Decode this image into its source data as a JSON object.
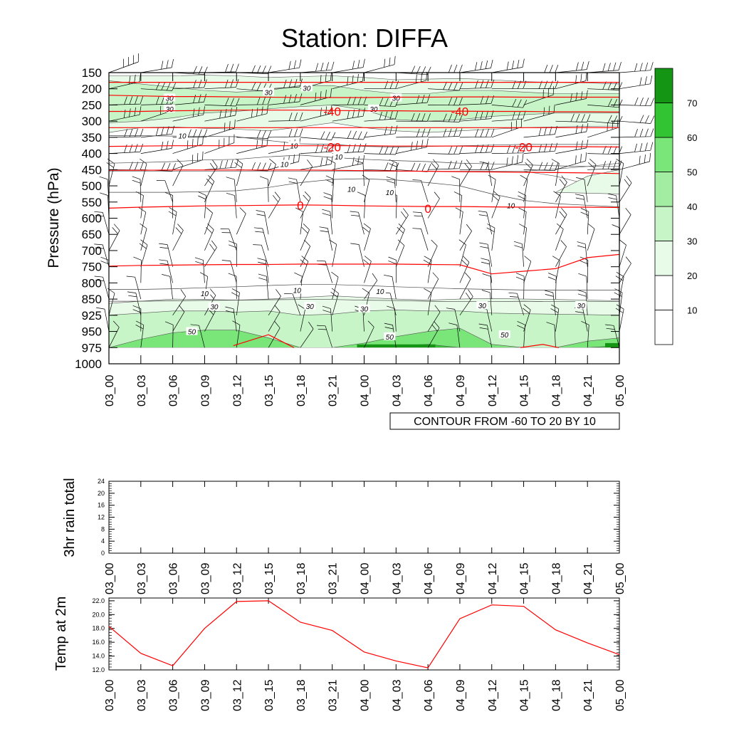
{
  "chart_data": [
    {
      "type": "contour",
      "title": "Station: DIFFA",
      "ylabel": "Pressure (hPa)",
      "info_label": "CONTOUR FROM -60 TO 20 BY 10",
      "time_labels": [
        "03_00",
        "03_03",
        "03_06",
        "03_09",
        "03_12",
        "03_15",
        "03_18",
        "03_21",
        "04_00",
        "04_03",
        "04_06",
        "04_09",
        "04_12",
        "04_15",
        "04_18",
        "04_21",
        "05_00"
      ],
      "pressure_levels": [
        150,
        200,
        250,
        300,
        350,
        400,
        450,
        500,
        550,
        600,
        650,
        700,
        750,
        800,
        850,
        925,
        950,
        975,
        1000
      ],
      "wind_speed_colorbar": {
        "bounds": [
          10,
          20,
          30,
          40,
          50,
          60,
          70
        ],
        "colors": [
          "#ffffff",
          "#ffffff",
          "#e8fbe8",
          "#c8f5c8",
          "#a3eda3",
          "#7ae67a",
          "#33c433",
          "#149614"
        ],
        "tick_labels": [
          "10",
          "20",
          "30",
          "40",
          "50",
          "60",
          "70"
        ]
      },
      "speed_contour_labels": [
        "30",
        "30",
        "30",
        "30",
        "30",
        "30",
        "10",
        "10",
        "10",
        "10",
        "10",
        "10",
        "10",
        "10",
        "10",
        "10",
        "30",
        "30",
        "30",
        "30",
        "30",
        "50",
        "50",
        "50"
      ],
      "temperature_isotherms": [
        {
          "value": -50,
          "label": "",
          "pressure": [
            180,
            180,
            180,
            180,
            180,
            180,
            180,
            180,
            180,
            180,
            180,
            180,
            180,
            180,
            180,
            180,
            180
          ]
        },
        {
          "value": -50,
          "label": "",
          "pressure": [
            220,
            222,
            224,
            224,
            225,
            226,
            227,
            227,
            227,
            226,
            226,
            225,
            225,
            226,
            226,
            226,
            226
          ]
        },
        {
          "value": -40,
          "label": "-40",
          "pressure": [
            270,
            270,
            268,
            267,
            266,
            266,
            266,
            267,
            268,
            268,
            269,
            269,
            270,
            270,
            271,
            271,
            272
          ]
        },
        {
          "value": -30,
          "label": "",
          "pressure": [
            320,
            320,
            320,
            320,
            320,
            320,
            320,
            320,
            320,
            320,
            320,
            320,
            320,
            320,
            320,
            320,
            320
          ]
        },
        {
          "value": -20,
          "label": "-20",
          "pressure": [
            378,
            377,
            376,
            376,
            376,
            376,
            376,
            376,
            376,
            377,
            377,
            377,
            378,
            378,
            379,
            379,
            380
          ]
        },
        {
          "value": -10,
          "label": "",
          "pressure": [
            452,
            452,
            451,
            451,
            451,
            451,
            451,
            452,
            453,
            454,
            455,
            456,
            457,
            458,
            459,
            460,
            462
          ]
        },
        {
          "value": 0,
          "label": "0",
          "pressure": [
            569,
            566,
            564,
            562,
            561,
            560,
            559,
            560,
            562,
            563,
            564,
            564,
            565,
            566,
            566,
            566,
            567
          ]
        },
        {
          "value": 10,
          "label": "",
          "pressure": [
            748,
            746,
            745,
            744,
            743,
            743,
            742,
            742,
            742,
            742,
            743,
            744,
            772,
            764,
            756,
            722,
            712
          ]
        }
      ],
      "isotherm_labels": [
        {
          "text": "-40",
          "time": "03_21",
          "pressure": 270
        },
        {
          "text": "-40",
          "time": "04_09",
          "pressure": 270
        },
        {
          "text": "-20",
          "time": "03_21",
          "pressure": 380
        },
        {
          "text": "-20",
          "time": "04_15",
          "pressure": 380
        },
        {
          "text": "0",
          "time": "03_18",
          "pressure": 560
        },
        {
          "text": "0",
          "time": "04_06",
          "pressure": 570
        }
      ]
    },
    {
      "type": "bar",
      "ylabel": "3hr rain total",
      "x": [
        "03_00",
        "03_03",
        "03_06",
        "03_09",
        "03_12",
        "03_15",
        "03_18",
        "03_21",
        "04_00",
        "04_03",
        "04_06",
        "04_09",
        "04_12",
        "04_15",
        "04_18",
        "04_21",
        "05_00"
      ],
      "values": [
        0,
        0,
        0,
        0,
        0,
        0,
        0,
        0,
        0,
        0,
        0,
        0,
        0,
        0,
        0,
        0,
        0
      ],
      "ylim": [
        0,
        24
      ],
      "yticks": [
        "0",
        "4",
        "8",
        "12",
        "16",
        "20",
        "24"
      ]
    },
    {
      "type": "line",
      "ylabel": "Temp at 2m",
      "x": [
        "03_00",
        "03_03",
        "03_06",
        "03_09",
        "03_12",
        "03_15",
        "03_18",
        "03_21",
        "04_00",
        "04_03",
        "04_06",
        "04_09",
        "04_12",
        "04_15",
        "04_18",
        "04_21",
        "05_00"
      ],
      "values": [
        18.3,
        14.4,
        12.6,
        18.0,
        21.9,
        22.0,
        18.9,
        17.7,
        14.6,
        13.3,
        12.3,
        19.4,
        21.4,
        21.2,
        17.8,
        15.9,
        14.2
      ],
      "ylim": [
        12,
        22.4
      ],
      "yticks": [
        "12.0",
        "14.0",
        "16.0",
        "18.0",
        "20.0",
        "22.0"
      ],
      "line_color": "#ff0000"
    }
  ],
  "colors": {
    "isotherm": "#ff0000",
    "axis": "#000000",
    "barb": "#000000"
  }
}
